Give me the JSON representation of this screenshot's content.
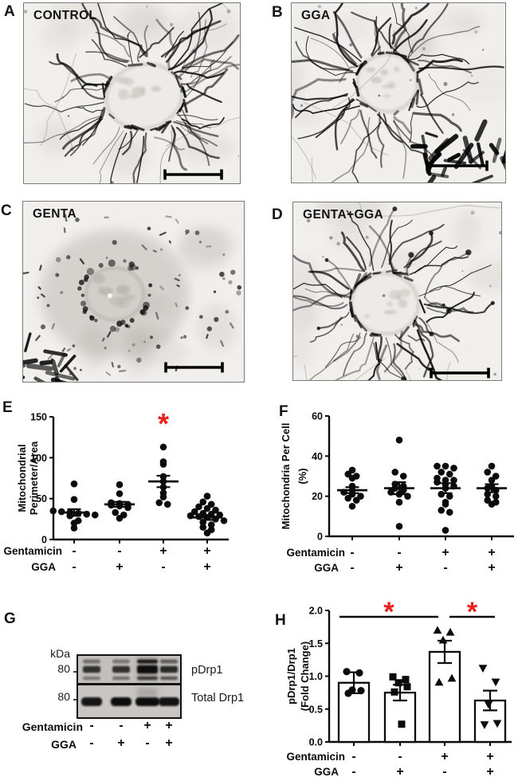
{
  "colors": {
    "accent_red": "#e8201d",
    "ink": "#0b0b0b"
  },
  "figure": {
    "panels": {
      "A": {
        "letter": "A",
        "image_label": "CONTROL",
        "morphology": "tubular network"
      },
      "B": {
        "letter": "B",
        "image_label": "GGA",
        "morphology": "tubular network"
      },
      "C": {
        "letter": "C",
        "image_label": "GENTA",
        "morphology": "fragmented"
      },
      "D": {
        "letter": "D",
        "image_label": "GENTA+GGA",
        "morphology": "restored network"
      },
      "E": {
        "letter": "E"
      },
      "F": {
        "letter": "F"
      },
      "G": {
        "letter": "G",
        "kda_label": "kDa",
        "marker_top": "80",
        "marker_bottom": "80",
        "band_top_label": "pDrp1",
        "band_bottom_label": "Total Drp1",
        "row1_label": "Gentamicin",
        "row1": [
          "-",
          "-",
          "+",
          "+"
        ],
        "row2_label": "GGA",
        "row2": [
          "-",
          "+",
          "-",
          "+"
        ],
        "lanes": [
          {
            "pdrp1": [
              0.45,
              0.8,
              0.4
            ],
            "total": 0.95
          },
          {
            "pdrp1": [
              0.4,
              0.8,
              0.45
            ],
            "total": 1.0
          },
          {
            "pdrp1": [
              0.9,
              1.0,
              0.7
            ],
            "total": 1.0
          },
          {
            "pdrp1": [
              0.55,
              0.85,
              0.6
            ],
            "total": 0.97
          }
        ]
      },
      "H": {
        "letter": "H"
      }
    }
  },
  "chart_data": [
    {
      "id": "E",
      "type": "scatter",
      "ylabel_lines": [
        "Mitochondrial",
        "Perimeter/Area"
      ],
      "ylim": [
        0,
        150
      ],
      "yticks": [
        0,
        50,
        100,
        150
      ],
      "groups": [
        {
          "values": [
            68,
            49,
            35,
            34,
            33,
            32,
            31,
            30,
            29,
            23,
            20,
            14
          ],
          "mean": 33,
          "sem": 4
        },
        {
          "values": [
            67,
            56,
            45,
            44,
            43,
            42,
            41,
            39,
            33,
            30,
            26
          ],
          "mean": 43,
          "sem": 3
        },
        {
          "values": [
            113,
            95,
            92,
            77,
            71,
            64,
            57,
            52,
            45,
            43
          ],
          "mean": 71,
          "sem": 7
        },
        {
          "values": [
            53,
            46,
            43,
            40,
            38,
            36,
            34,
            32,
            31,
            30,
            29,
            28,
            27,
            25,
            23,
            21,
            18,
            15,
            12,
            8
          ],
          "mean": 27,
          "sem": 3
        }
      ],
      "x_rows": [
        {
          "label": "Gentamicin",
          "values": [
            "-",
            "-",
            "+",
            "+"
          ]
        },
        {
          "label": "GGA",
          "values": [
            "-",
            "+",
            "-",
            "+"
          ]
        }
      ],
      "significance": [
        {
          "group": 2,
          "symbol": "*"
        }
      ]
    },
    {
      "id": "F",
      "type": "scatter",
      "ylabel_lines": [
        "Mitochondria Per Cell",
        "(%)"
      ],
      "ylim": [
        0,
        60
      ],
      "yticks": [
        0,
        20,
        40,
        60
      ],
      "groups": [
        {
          "values": [
            33,
            31,
            30,
            29,
            25,
            23,
            22,
            21,
            20,
            19,
            18,
            15
          ],
          "mean": 23,
          "sem": 1.5
        },
        {
          "values": [
            48,
            32,
            30,
            26,
            25,
            24,
            23,
            22,
            21,
            20,
            17,
            5
          ],
          "mean": 24,
          "sem": 3
        },
        {
          "values": [
            35,
            35,
            34,
            32,
            31,
            29,
            28,
            28,
            27,
            26,
            25,
            24,
            21,
            20,
            17,
            16,
            13,
            12,
            3
          ],
          "mean": 24,
          "sem": 2.5
        },
        {
          "values": [
            35,
            32,
            30,
            28,
            25,
            24,
            23,
            21,
            20,
            18,
            17,
            16
          ],
          "mean": 24,
          "sem": 2
        }
      ],
      "x_rows": [
        {
          "label": "Gentamicin",
          "values": [
            "-",
            "-",
            "+",
            "+"
          ]
        },
        {
          "label": "GGA",
          "values": [
            "-",
            "+",
            "-",
            "+"
          ]
        }
      ],
      "significance": []
    },
    {
      "id": "H",
      "type": "bar",
      "ylabel_lines": [
        "pDrp1/Drp1",
        "(Fold Change)"
      ],
      "ylim": [
        0,
        2
      ],
      "yticks": [
        0,
        0.5,
        1,
        1.5,
        2
      ],
      "ytick_decimals": 1,
      "bars": [
        {
          "value": 0.9,
          "sem": 0.16,
          "marker": "circle",
          "points": [
            1.07,
            1.05,
            0.79,
            0.78,
            0.74
          ]
        },
        {
          "value": 0.75,
          "sem": 0.12,
          "marker": "square",
          "points": [
            0.99,
            0.95,
            0.9,
            0.84,
            0.76,
            0.27
          ]
        },
        {
          "value": 1.37,
          "sem": 0.17,
          "marker": "triangle-up",
          "points": [
            1.7,
            1.67,
            1.55,
            0.97,
            0.91
          ]
        },
        {
          "value": 0.63,
          "sem": 0.15,
          "marker": "triangle-down",
          "points": [
            1.12,
            0.91,
            0.57,
            0.28,
            0.26
          ]
        }
      ],
      "x_rows": [
        {
          "label": "Gentamicin",
          "values": [
            "-",
            "-",
            "+",
            "+"
          ]
        },
        {
          "label": "GGA",
          "values": [
            "-",
            "+",
            "-",
            "+"
          ]
        }
      ],
      "significance_lines": [
        {
          "from": 0,
          "to": 2,
          "symbol": "*"
        },
        {
          "from": 2,
          "to": 3,
          "symbol": "*"
        }
      ]
    }
  ]
}
